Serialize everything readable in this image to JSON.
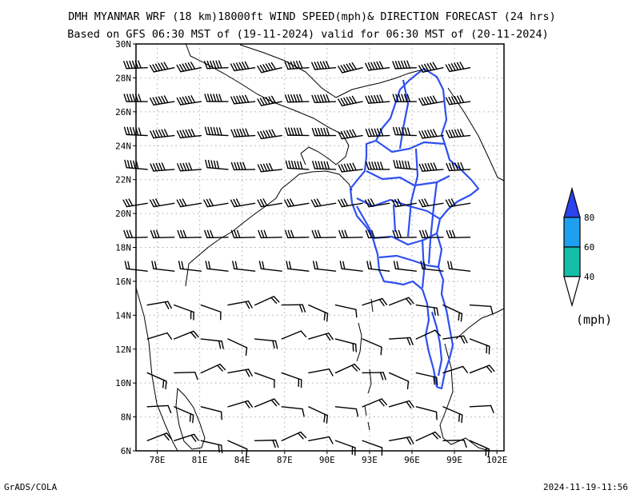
{
  "title": {
    "line1": "DMH MYANMAR WRF (18 km)18000ft WIND SPEED(mph)& DIRECTION FORECAST (24 hrs)",
    "line2": "Based on GFS 06:30 MST of (19-11-2024) valid for 06:30 MST of (20-11-2024)"
  },
  "axes": {
    "lat_labels": [
      "6N",
      "8N",
      "10N",
      "12N",
      "14N",
      "16N",
      "18N",
      "20N",
      "22N",
      "24N",
      "26N",
      "28N",
      "30N"
    ],
    "lon_labels": [
      "78E",
      "81E",
      "84E",
      "87E",
      "90E",
      "93E",
      "96E",
      "99E",
      "102E"
    ],
    "lat_range": [
      6,
      30
    ],
    "lon_range": [
      76.5,
      102.5
    ]
  },
  "legend": {
    "unit": "(mph)",
    "labels": [
      "40",
      "60",
      "80"
    ],
    "colors": {
      "c40": "#13bfa9",
      "c60": "#1e9ff0",
      "c80": "#2a43ec",
      "outline": "#000000"
    }
  },
  "colors": {
    "border_myanmar": "#2f50f0",
    "coast": "#000000",
    "grid": "#a9a9a9"
  },
  "footer": {
    "left": "GrADS/COLA",
    "right": "2024-11-19-11:56"
  }
}
